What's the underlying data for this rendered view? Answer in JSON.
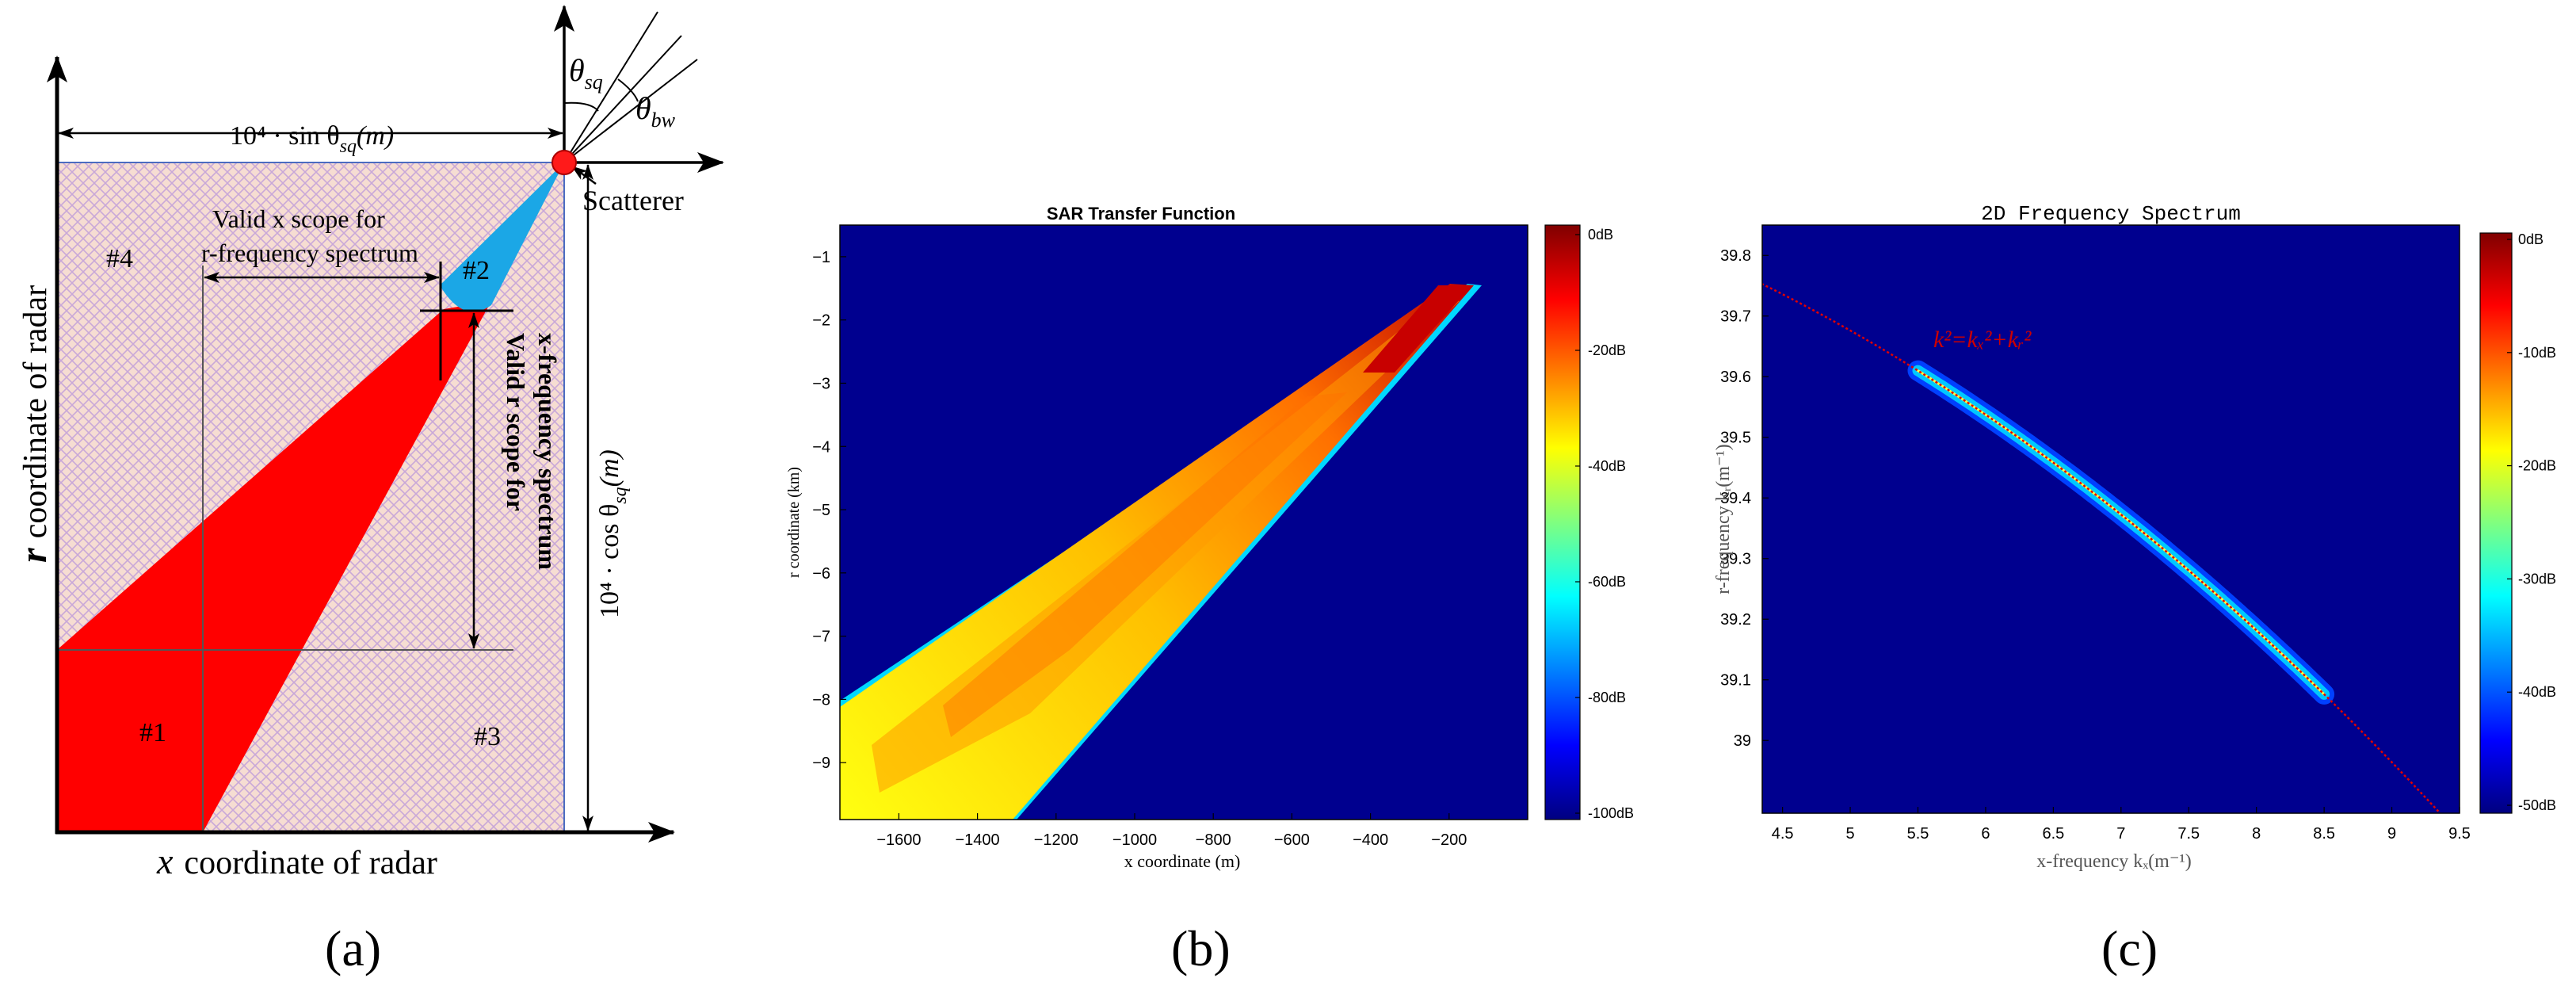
{
  "panel_a": {
    "caption": "(a)",
    "top_dim": "10⁴ · sin θ",
    "top_dim_sub": "sq",
    "top_dim_unit": "(m)",
    "right_dim": "10⁴ · cos θ",
    "right_dim_sub": "sq",
    "right_dim_unit": "(m)",
    "theta_sq": "θ",
    "theta_sq_sub": "sq",
    "theta_bw": "θ",
    "theta_bw_sub": "bw",
    "scatterer": "Scatterer",
    "valid_x_line1": "Valid x scope for",
    "valid_x_line2": "r-frequency spectrum",
    "valid_r_line1": "Valid r scope for",
    "valid_r_line2": "x-frequency spectrum",
    "region1": "#1",
    "region2": "#2",
    "region3": "#3",
    "region4": "#4",
    "xlabel_var": "x",
    "xlabel_rest": "coordinate of radar",
    "ylabel_var": "r",
    "ylabel_rest": "coordinate of radar",
    "colors": {
      "red": "#ff0000",
      "cyan": "#1ba7e6",
      "hatch_bg": "#f6ddd2",
      "hatch_line": "#c0a7d6"
    }
  },
  "panel_b": {
    "caption": "(b)",
    "chart_data": {
      "type": "heatmap",
      "title": "SAR Transfer Function",
      "xlabel": "x  coordinate (m)",
      "ylabel": "r  coordinate (km)",
      "xlim": [
        -1750,
        0
      ],
      "ylim": [
        -9.9,
        -0.5
      ],
      "xticks": [
        -1600,
        -1400,
        -1200,
        -1000,
        -800,
        -600,
        -400,
        -200
      ],
      "yticks": [
        -1,
        -2,
        -3,
        -4,
        -5,
        -6,
        -7,
        -8,
        -9
      ],
      "colorbar": {
        "min": -100,
        "max": 0,
        "ticks": [
          "0dB",
          "-20dB",
          "-40dB",
          "-60dB",
          "-80dB",
          "-100dB"
        ]
      },
      "background_db": -100
    }
  },
  "panel_c": {
    "caption": "(c)",
    "annotation": "k²=kₓ²+kᵣ²",
    "chart_data": {
      "type": "heatmap",
      "title": "2D Frequency Spectrum",
      "xlabel": "x-frequency kₓ(m⁻¹)",
      "ylabel": "r-frequency kᵣ(m⁻¹)",
      "xlim": [
        4.35,
        9.5
      ],
      "ylim": [
        38.88,
        39.85
      ],
      "xticks": [
        4.5,
        5,
        5.5,
        6,
        6.5,
        7,
        7.5,
        8,
        8.5,
        9,
        9.5
      ],
      "yticks": [
        39,
        39.1,
        39.2,
        39.3,
        39.4,
        39.5,
        39.6,
        39.7,
        39.8
      ],
      "colorbar": {
        "min": -50,
        "max": 0,
        "ticks": [
          "0dB",
          "-10dB",
          "-20dB",
          "-30dB",
          "-40dB",
          "-50dB"
        ]
      },
      "circle_k": 39.99,
      "band_kx_range": [
        5.5,
        8.5
      ]
    }
  }
}
